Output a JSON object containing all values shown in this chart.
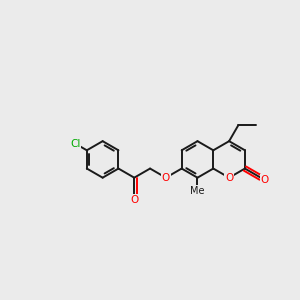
{
  "background_color": "#ebebeb",
  "bond_color": "#1a1a1a",
  "oxygen_color": "#ff0000",
  "chlorine_color": "#00aa00",
  "line_width": 1.4,
  "figsize": [
    3.0,
    3.0
  ],
  "dpi": 100,
  "xlim": [
    0,
    10
  ],
  "ylim": [
    2,
    9
  ]
}
